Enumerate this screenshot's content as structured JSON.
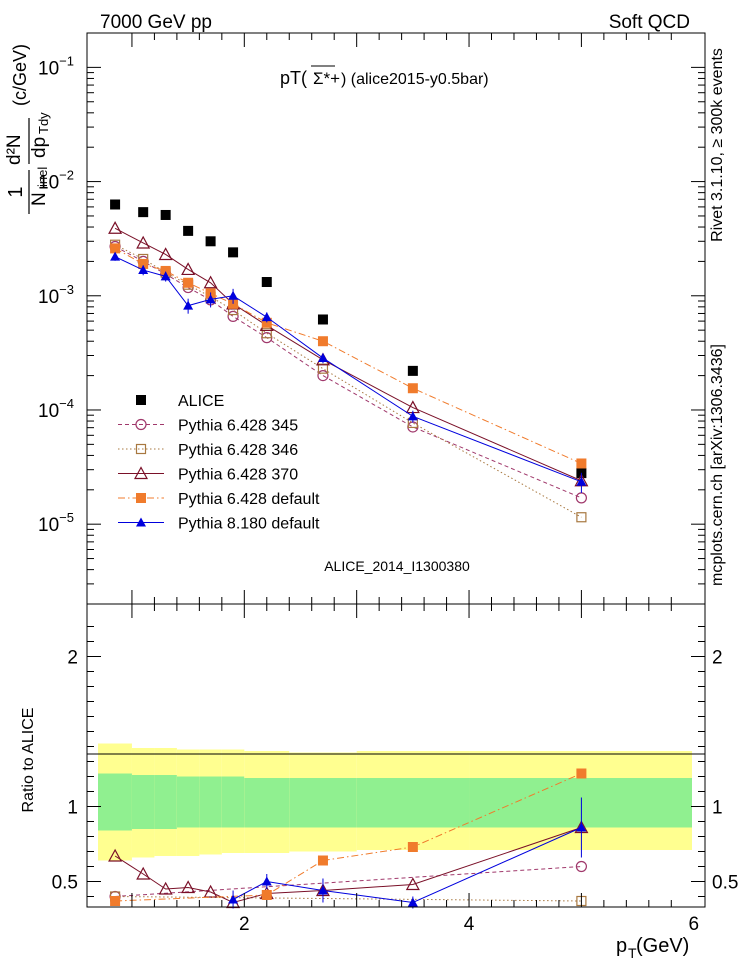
{
  "header": {
    "left": "7000 GeV pp",
    "right": "Soft QCD"
  },
  "side_labels": {
    "top": "Rivet 3.1.10, ≥ 300k events",
    "bottom": "mcplots.cern.ch [arXiv:1306.3436]"
  },
  "colors": {
    "alice": "#000000",
    "py345": "#a0386b",
    "py346": "#a87840",
    "py370": "#7a1028",
    "pydef": "#f07b2c",
    "py8": "#0000dd",
    "band_inner": "#90f090",
    "band_outer": "#ffff90"
  },
  "chart_data": [
    {
      "type": "scatter",
      "title_main": "pT(",
      "title_particle": "Σ*+",
      "title_tail": ") (alice2015-y0.5bar)",
      "ylabel_prefix": "1",
      "ylabel_frac_num": "d²N",
      "ylabel_frac_den_n": "N",
      "ylabel_frac_den_sub": "inel",
      "ylabel_dp": "dp",
      "ylabel_dp_sub": "Tdy",
      "ylabel_unit": "(c/GeV)",
      "yscale": "log",
      "xlim": [
        0.6,
        6.1
      ],
      "ylim": [
        2e-06,
        0.2
      ],
      "ytick_labels": [
        "10^-5",
        "10^-4",
        "10^-3",
        "10^-2",
        "10^-1"
      ],
      "watermark": "ALICE_2014_I1300380",
      "legend_position": "left",
      "series": [
        {
          "name": "ALICE",
          "marker": "square-filled",
          "color": "#000000",
          "x": [
            0.85,
            1.1,
            1.3,
            1.5,
            1.7,
            1.9,
            2.2,
            2.7,
            3.5,
            5.0
          ],
          "y": [
            0.0063,
            0.0054,
            0.0051,
            0.0037,
            0.003,
            0.0024,
            0.00132,
            0.00062,
            0.00022,
            2.8e-05
          ]
        },
        {
          "name": "Pythia 6.428 345",
          "marker": "circle-open",
          "line": "dashed",
          "color": "#a0386b",
          "x": [
            0.85,
            1.1,
            1.3,
            1.5,
            1.7,
            1.9,
            2.2,
            2.7,
            3.5,
            5.0
          ],
          "y": [
            0.0027,
            0.002,
            0.00155,
            0.00118,
            0.00092,
            0.00066,
            0.00043,
            0.0002,
            7.1e-05,
            1.7e-05
          ]
        },
        {
          "name": "Pythia 6.428 346",
          "marker": "square-open",
          "line": "dotted",
          "color": "#a87840",
          "x": [
            0.85,
            1.1,
            1.3,
            1.5,
            1.7,
            1.9,
            2.2,
            2.7,
            3.5,
            5.0
          ],
          "y": [
            0.0028,
            0.0021,
            0.0016,
            0.00125,
            0.00098,
            0.00075,
            0.00047,
            0.00023,
            7.7e-05,
            1.15e-05
          ]
        },
        {
          "name": "Pythia 6.428 370",
          "marker": "triangle-open",
          "line": "solid",
          "color": "#7a1028",
          "x": [
            0.85,
            1.1,
            1.3,
            1.5,
            1.7,
            1.9,
            2.2,
            2.7,
            3.5,
            5.0
          ],
          "y": [
            0.0039,
            0.0029,
            0.0023,
            0.0017,
            0.0013,
            0.00085,
            0.00055,
            0.000275,
            0.000105,
            2.4e-05
          ]
        },
        {
          "name": "Pythia 6.428 default",
          "marker": "square-filled",
          "line": "dashdot",
          "color": "#f07b2c",
          "x": [
            0.85,
            1.1,
            1.3,
            1.5,
            1.7,
            1.9,
            2.2,
            2.7,
            3.5,
            5.0
          ],
          "y": [
            0.0026,
            0.0019,
            0.00165,
            0.0013,
            0.00105,
            0.00085,
            0.00058,
            0.0004,
            0.000155,
            3.4e-05
          ]
        },
        {
          "name": "Pythia 8.180 default",
          "marker": "triangle-filled",
          "line": "solid",
          "color": "#0000dd",
          "x": [
            0.85,
            1.1,
            1.3,
            1.5,
            1.7,
            1.9,
            2.2,
            2.7,
            3.5,
            5.0
          ],
          "y": [
            0.0022,
            0.00168,
            0.00148,
            0.00082,
            0.00093,
            0.001,
            0.00065,
            0.000285,
            8.8e-05,
            2.35e-05
          ],
          "err_rel": [
            0.08,
            0.1,
            0.1,
            0.15,
            0.15,
            0.15,
            0.1,
            0.1,
            0.12,
            0.2
          ]
        }
      ]
    },
    {
      "type": "scatter",
      "ylabel": "Ratio to ALICE",
      "xlabel_main": "p",
      "xlabel_sub": "T",
      "xlabel_unit": " (GeV)",
      "xlim": [
        0.6,
        6.1
      ],
      "ylim": [
        0.33,
        2.35
      ],
      "xtick_labels": [
        "2",
        "4",
        "6"
      ],
      "ytick_labels_left": [
        "0.5",
        "1",
        "2"
      ],
      "ytick_labels_right": [
        "0.5",
        "1",
        "2"
      ],
      "bands": {
        "x_edges": [
          0.6,
          1.0,
          1.2,
          1.4,
          1.6,
          1.8,
          2.0,
          2.4,
          3.0,
          4.0,
          6.0
        ],
        "inner_lo": [
          0.84,
          0.85,
          0.85,
          0.86,
          0.86,
          0.86,
          0.86,
          0.86,
          0.86,
          0.86
        ],
        "inner_hi": [
          1.22,
          1.21,
          1.21,
          1.2,
          1.2,
          1.2,
          1.19,
          1.19,
          1.19,
          1.19
        ],
        "outer_lo": [
          0.64,
          0.66,
          0.67,
          0.67,
          0.68,
          0.69,
          0.69,
          0.7,
          0.71,
          0.71
        ],
        "outer_hi": [
          1.42,
          1.39,
          1.39,
          1.38,
          1.38,
          1.38,
          1.37,
          1.36,
          1.37,
          1.37
        ]
      },
      "series": [
        {
          "name": "Pythia 6.428 345",
          "x": [
            0.85,
            5.0
          ],
          "y": [
            0.4,
            0.6
          ]
        },
        {
          "name": "Pythia 6.428 346",
          "x": [
            0.85,
            5.0
          ],
          "y": [
            0.4,
            0.37
          ]
        },
        {
          "name": "Pythia 6.428 370",
          "x": [
            0.85,
            1.1,
            1.3,
            1.5,
            1.7,
            1.9,
            2.2,
            2.7,
            3.5,
            5.0
          ],
          "y": [
            0.67,
            0.55,
            0.45,
            0.46,
            0.43,
            0.36,
            0.42,
            0.44,
            0.48,
            0.86
          ]
        },
        {
          "name": "Pythia 6.428 default",
          "x": [
            0.85,
            2.2,
            2.7,
            3.5,
            5.0
          ],
          "y": [
            0.37,
            0.41,
            0.64,
            0.73,
            1.22
          ]
        },
        {
          "name": "Pythia 8.180 default",
          "x": [
            1.9,
            2.2,
            2.7,
            3.5,
            5.0
          ],
          "y": [
            0.38,
            0.5,
            0.44,
            0.36,
            0.86
          ],
          "err": [
            0.06,
            0.05,
            0.08,
            0.04,
            0.2
          ]
        }
      ]
    }
  ]
}
